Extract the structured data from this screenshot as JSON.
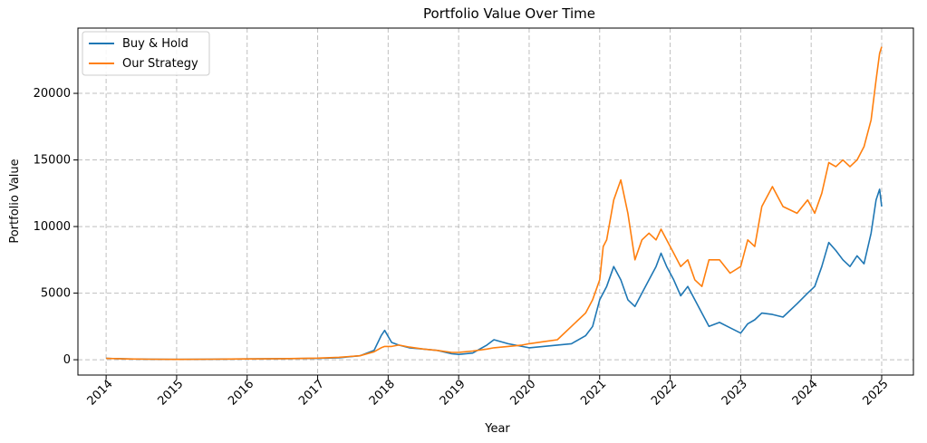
{
  "chart_data": {
    "type": "line",
    "title": "Portfolio Value Over Time",
    "xlabel": "Year",
    "ylabel": "Portfolio Value",
    "xlim": [
      2013.6,
      2025.45
    ],
    "ylim": [
      -1150,
      24900
    ],
    "x_ticks": [
      2014,
      2015,
      2016,
      2017,
      2018,
      2019,
      2020,
      2021,
      2022,
      2023,
      2024,
      2025
    ],
    "x_tick_labels": [
      "2014",
      "2015",
      "2016",
      "2017",
      "2018",
      "2019",
      "2020",
      "2021",
      "2022",
      "2023",
      "2024",
      "2025"
    ],
    "y_ticks": [
      0,
      5000,
      10000,
      15000,
      20000
    ],
    "y_tick_labels": [
      "0",
      "5000",
      "10000",
      "15000",
      "20000"
    ],
    "grid": true,
    "legend_position": "top-left",
    "series": [
      {
        "name": "Buy & Hold",
        "color": "#1f77b4",
        "x": [
          2014.0,
          2014.3,
          2014.6,
          2015.0,
          2015.5,
          2016.0,
          2016.5,
          2017.0,
          2017.3,
          2017.6,
          2017.8,
          2017.9,
          2017.95,
          2018.05,
          2018.15,
          2018.3,
          2018.5,
          2018.7,
          2018.9,
          2019.0,
          2019.2,
          2019.4,
          2019.5,
          2019.7,
          2019.9,
          2020.0,
          2020.2,
          2020.4,
          2020.6,
          2020.8,
          2020.9,
          2021.0,
          2021.1,
          2021.2,
          2021.3,
          2021.4,
          2021.5,
          2021.6,
          2021.7,
          2021.8,
          2021.87,
          2021.95,
          2022.05,
          2022.15,
          2022.25,
          2022.35,
          2022.45,
          2022.55,
          2022.7,
          2022.85,
          2023.0,
          2023.1,
          2023.2,
          2023.3,
          2023.45,
          2023.6,
          2023.8,
          2023.95,
          2024.05,
          2024.15,
          2024.25,
          2024.35,
          2024.45,
          2024.55,
          2024.65,
          2024.75,
          2024.85,
          2024.92,
          2024.97,
          2025.0
        ],
        "y": [
          100,
          60,
          40,
          30,
          40,
          60,
          80,
          100,
          150,
          300,
          700,
          1800,
          2200,
          1300,
          1100,
          900,
          800,
          700,
          450,
          400,
          500,
          1100,
          1500,
          1200,
          1000,
          900,
          1000,
          1100,
          1200,
          1800,
          2500,
          4500,
          5500,
          7000,
          6000,
          4500,
          4000,
          5000,
          6000,
          7000,
          8000,
          7000,
          6000,
          4800,
          5500,
          4500,
          3500,
          2500,
          2800,
          2400,
          2000,
          2700,
          3000,
          3500,
          3400,
          3200,
          4200,
          5000,
          5500,
          7000,
          8800,
          8200,
          7500,
          7000,
          7800,
          7200,
          9500,
          12000,
          12800,
          11500
        ]
      },
      {
        "name": "Our Strategy",
        "color": "#ff7f0e",
        "x": [
          2014.0,
          2014.3,
          2014.6,
          2015.0,
          2015.5,
          2016.0,
          2016.5,
          2017.0,
          2017.3,
          2017.6,
          2017.8,
          2017.9,
          2017.95,
          2018.05,
          2018.15,
          2018.3,
          2018.5,
          2018.7,
          2018.9,
          2019.0,
          2019.2,
          2019.4,
          2019.5,
          2019.7,
          2019.9,
          2020.0,
          2020.2,
          2020.4,
          2020.6,
          2020.8,
          2020.9,
          2021.0,
          2021.05,
          2021.1,
          2021.2,
          2021.3,
          2021.4,
          2021.5,
          2021.6,
          2021.7,
          2021.8,
          2021.87,
          2021.95,
          2022.05,
          2022.15,
          2022.25,
          2022.35,
          2022.45,
          2022.55,
          2022.7,
          2022.85,
          2023.0,
          2023.1,
          2023.2,
          2023.3,
          2023.45,
          2023.6,
          2023.8,
          2023.95,
          2024.05,
          2024.15,
          2024.25,
          2024.35,
          2024.45,
          2024.55,
          2024.65,
          2024.75,
          2024.85,
          2024.92,
          2024.97,
          2025.0
        ],
        "y": [
          100,
          60,
          40,
          30,
          40,
          60,
          80,
          120,
          180,
          300,
          600,
          900,
          1000,
          1000,
          1100,
          950,
          800,
          700,
          550,
          550,
          650,
          800,
          900,
          1000,
          1100,
          1200,
          1350,
          1500,
          2500,
          3500,
          4500,
          6000,
          8500,
          9000,
          12000,
          13500,
          11000,
          7500,
          9000,
          9500,
          9000,
          9800,
          9000,
          8000,
          7000,
          7500,
          6000,
          5500,
          7500,
          7500,
          6500,
          7000,
          9000,
          8500,
          11500,
          13000,
          11500,
          11000,
          12000,
          11000,
          12500,
          14800,
          14500,
          15000,
          14500,
          15000,
          16000,
          18000,
          21000,
          23000,
          23500
        ]
      }
    ]
  }
}
